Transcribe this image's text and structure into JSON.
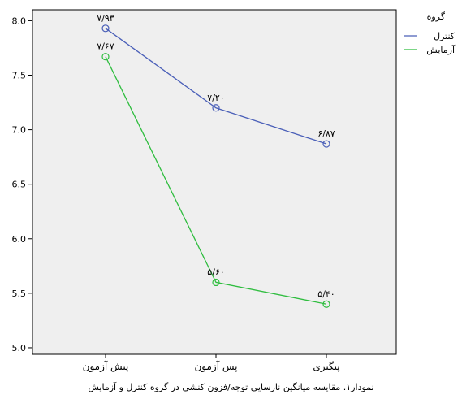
{
  "caption": "نمودار۱. مقایسه میانگین نارسایی توجه/فزون کنشی در گروه کنترل و آزمایش",
  "chart_data": {
    "type": "line",
    "title": "",
    "xlabel": "",
    "ylabel": "",
    "categories": [
      "پیش آزمون",
      "پس آزمون",
      "پیگیری"
    ],
    "ylim": [
      4.94,
      8.1
    ],
    "yticks": [
      5.0,
      5.5,
      6.0,
      6.5,
      7.0,
      7.5,
      8.0
    ],
    "ytick_labels": [
      "5.0",
      "5.5",
      "6.0",
      "6.5",
      "7.0",
      "7.5",
      "8.0"
    ],
    "grid": false,
    "plot_background": "#efefef",
    "legend": {
      "title": "گروه",
      "position": "top-right"
    },
    "series": [
      {
        "name": "کنترل",
        "color": "#4a5fb8",
        "values": [
          7.93,
          7.2,
          6.87
        ],
        "labels": [
          "۷/۹۳",
          "۷/۲۰",
          "۶/۸۷"
        ]
      },
      {
        "name": "آزمایش",
        "color": "#2fbd3f",
        "values": [
          7.67,
          5.6,
          5.4
        ],
        "labels": [
          "۷/۶۷",
          "۵/۶۰",
          "۵/۴۰"
        ]
      }
    ]
  }
}
